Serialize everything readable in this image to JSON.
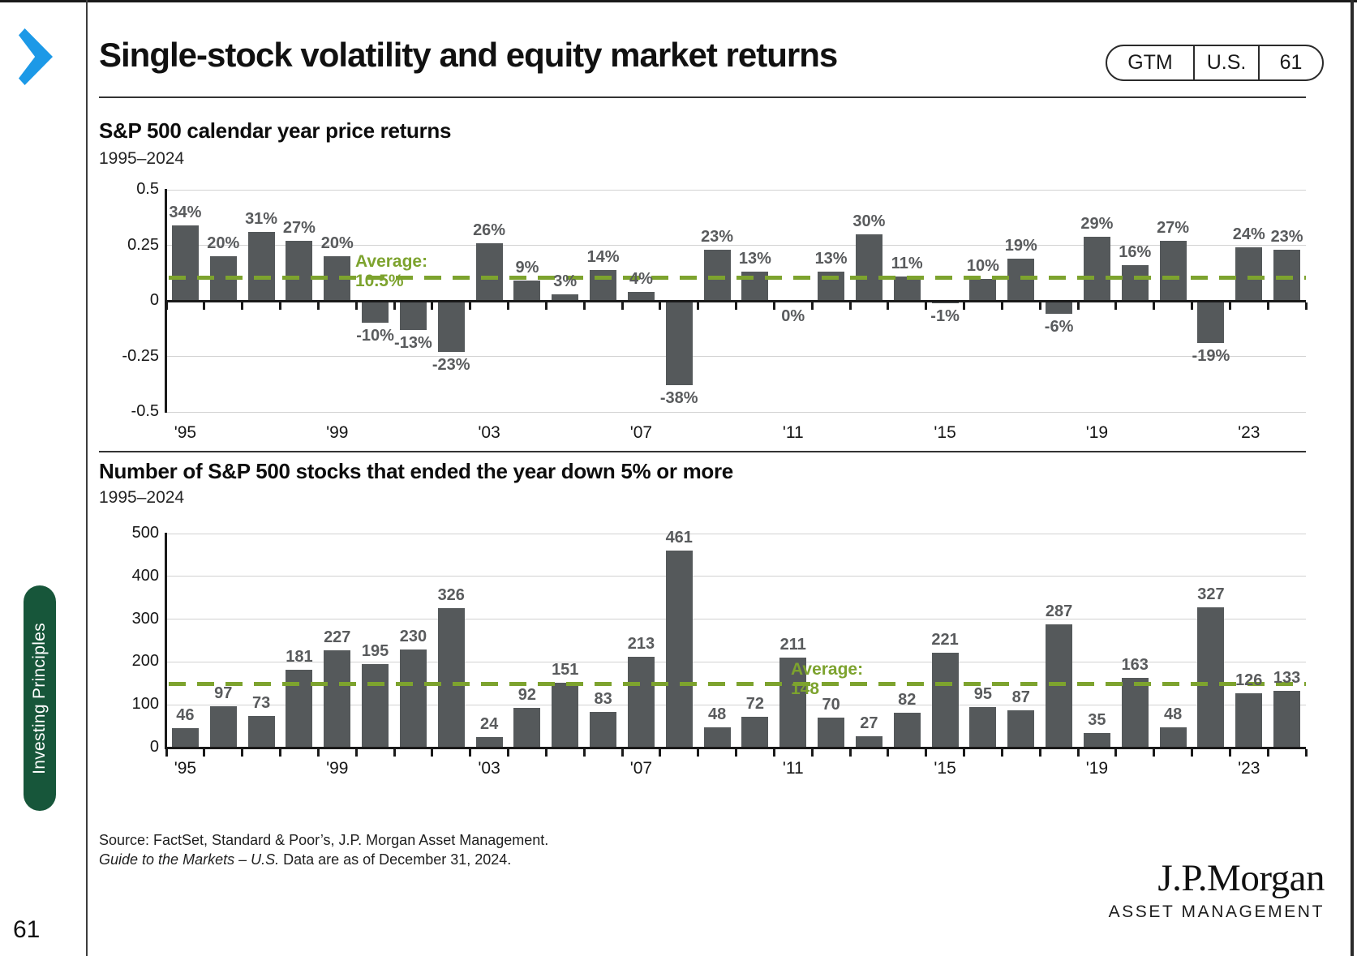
{
  "header": {
    "title": "Single-stock volatility and equity market returns",
    "badge": {
      "gtm": "GTM",
      "region": "U.S.",
      "page": "61"
    }
  },
  "icons": {
    "chevron": "chevron-right-icon"
  },
  "colors": {
    "bar_gray": "#55595b",
    "accent_green": "#7da32e",
    "chevron_blue": "#1c99e7",
    "sidebar_green": "#17563a"
  },
  "sidebar": {
    "tab_label": "Investing Principles",
    "page_number": "61"
  },
  "chart_data": [
    {
      "type": "bar",
      "title": "S&P 500 calendar year price returns",
      "subtitle": "1995–2024",
      "x": [
        1995,
        1996,
        1997,
        1998,
        1999,
        2000,
        2001,
        2002,
        2003,
        2004,
        2005,
        2006,
        2007,
        2008,
        2009,
        2010,
        2011,
        2012,
        2013,
        2014,
        2015,
        2016,
        2017,
        2018,
        2019,
        2020,
        2021,
        2022,
        2023,
        2024
      ],
      "values": [
        34,
        20,
        31,
        27,
        20,
        -10,
        -13,
        -23,
        26,
        9,
        3,
        14,
        4,
        -38,
        23,
        13,
        0,
        13,
        30,
        11,
        -1,
        10,
        19,
        -6,
        29,
        16,
        27,
        -19,
        24,
        23
      ],
      "labels": [
        "34%",
        "20%",
        "31%",
        "27%",
        "20%",
        "-10%",
        "-13%",
        "-23%",
        "26%",
        "9%",
        "3%",
        "14%",
        "4%",
        "-38%",
        "23%",
        "13%",
        "0%",
        "13%",
        "30%",
        "11%",
        "-1%",
        "10%",
        "19%",
        "-6%",
        "29%",
        "16%",
        "27%",
        "-19%",
        "24%",
        "23%"
      ],
      "ylim": [
        -50,
        50
      ],
      "yticks": [
        {
          "value": 50,
          "label": "0.5"
        },
        {
          "value": 25,
          "label": "0.25"
        },
        {
          "value": 0,
          "label": "0"
        },
        {
          "value": -25,
          "label": "-0.25"
        },
        {
          "value": -50,
          "label": "-0.5"
        }
      ],
      "xticks": [
        {
          "index": 0,
          "label": "'95"
        },
        {
          "index": 4,
          "label": "'99"
        },
        {
          "index": 8,
          "label": "'03"
        },
        {
          "index": 12,
          "label": "'07"
        },
        {
          "index": 16,
          "label": "'11"
        },
        {
          "index": 20,
          "label": "'15"
        },
        {
          "index": 24,
          "label": "'19"
        },
        {
          "index": 28,
          "label": "'23"
        }
      ],
      "average_value": 10.5,
      "average_label": "Average: 10.5%",
      "grid": true,
      "legend": "none"
    },
    {
      "type": "bar",
      "title": "Number of S&P 500 stocks that ended the year down 5% or more",
      "subtitle": "1995–2024",
      "x": [
        1995,
        1996,
        1997,
        1998,
        1999,
        2000,
        2001,
        2002,
        2003,
        2004,
        2005,
        2006,
        2007,
        2008,
        2009,
        2010,
        2011,
        2012,
        2013,
        2014,
        2015,
        2016,
        2017,
        2018,
        2019,
        2020,
        2021,
        2022,
        2023,
        2024
      ],
      "values": [
        46,
        97,
        73,
        181,
        227,
        195,
        230,
        326,
        24,
        92,
        151,
        83,
        213,
        461,
        48,
        72,
        211,
        70,
        27,
        82,
        221,
        95,
        87,
        287,
        35,
        163,
        48,
        327,
        126,
        133
      ],
      "labels": [
        "46",
        "97",
        "73",
        "181",
        "227",
        "195",
        "230",
        "326",
        "24",
        "92",
        "151",
        "83",
        "213",
        "461",
        "48",
        "72",
        "211",
        "70",
        "27",
        "82",
        "221",
        "95",
        "87",
        "287",
        "35",
        "163",
        "48",
        "327",
        "126",
        "133"
      ],
      "ylim": [
        0,
        500
      ],
      "yticks": [
        {
          "value": 0,
          "label": "0"
        },
        {
          "value": 100,
          "label": "100"
        },
        {
          "value": 200,
          "label": "200"
        },
        {
          "value": 300,
          "label": "300"
        },
        {
          "value": 400,
          "label": "400"
        },
        {
          "value": 500,
          "label": "500"
        }
      ],
      "xticks": [
        {
          "index": 0,
          "label": "'95"
        },
        {
          "index": 4,
          "label": "'99"
        },
        {
          "index": 8,
          "label": "'03"
        },
        {
          "index": 12,
          "label": "'07"
        },
        {
          "index": 16,
          "label": "'11"
        },
        {
          "index": 20,
          "label": "'15"
        },
        {
          "index": 24,
          "label": "'19"
        },
        {
          "index": 28,
          "label": "'23"
        }
      ],
      "average_value": 148,
      "average_label": "Average: 148",
      "grid": true,
      "legend": "none"
    }
  ],
  "footer": {
    "source_line": "Source: FactSet, Standard & Poor’s, J.P. Morgan Asset Management.",
    "guide_italic": "Guide to the Markets – U.S.",
    "guide_rest": " Data are as of December 31, 2024.",
    "logo_main": "J.P.Morgan",
    "logo_sub": "ASSET MANAGEMENT"
  }
}
